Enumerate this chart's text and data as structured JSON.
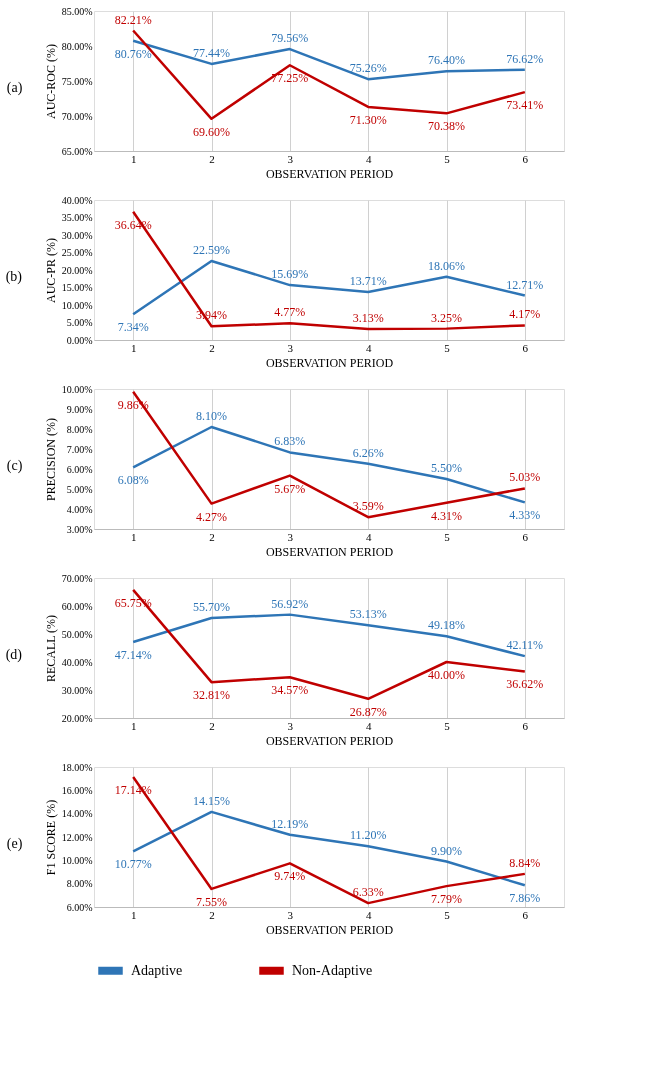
{
  "chart_data": [
    {
      "type": "line",
      "title": "(a)",
      "xlabel": "OBSERVATION PERIOD",
      "ylabel": "AUC-ROC (%)",
      "categories": [
        "1",
        "2",
        "3",
        "4",
        "5",
        "6"
      ],
      "ylim": [
        65,
        85
      ],
      "yticks": [
        {
          "value": 65,
          "label": "65.00%"
        },
        {
          "value": 70,
          "label": "70.00%"
        },
        {
          "value": 75,
          "label": "75.00%"
        },
        {
          "value": 80,
          "label": "80.00%"
        },
        {
          "value": 85,
          "label": "85.00%"
        }
      ],
      "grid": "x",
      "legend": "bottom",
      "series": [
        {
          "name": "Adaptive",
          "color": "#2e75b6",
          "values": [
            80.76,
            77.44,
            79.56,
            75.26,
            76.4,
            76.62
          ],
          "value_labels": [
            "80.76%",
            "77.44%",
            "79.56%",
            "75.26%",
            "76.40%",
            "76.62%"
          ]
        },
        {
          "name": "Non-Adaptive",
          "color": "#c00000",
          "values": [
            82.21,
            69.6,
            77.25,
            71.3,
            70.38,
            73.41
          ],
          "value_labels": [
            "82.21%",
            "69.60%",
            "77.25%",
            "71.30%",
            "70.38%",
            "73.41%"
          ]
        }
      ]
    },
    {
      "type": "line",
      "title": "(b)",
      "xlabel": "OBSERVATION PERIOD",
      "ylabel": "AUC-PR (%)",
      "categories": [
        "1",
        "2",
        "3",
        "4",
        "5",
        "6"
      ],
      "ylim": [
        0,
        40
      ],
      "yticks": [
        {
          "value": 0,
          "label": "0.00%"
        },
        {
          "value": 5,
          "label": "5.00%"
        },
        {
          "value": 10,
          "label": "10.00%"
        },
        {
          "value": 15,
          "label": "15.00%"
        },
        {
          "value": 20,
          "label": "20.00%"
        },
        {
          "value": 25,
          "label": "25.00%"
        },
        {
          "value": 30,
          "label": "30.00%"
        },
        {
          "value": 35,
          "label": "35.00%"
        },
        {
          "value": 40,
          "label": "40.00%"
        }
      ],
      "grid": "x",
      "legend": "bottom",
      "series": [
        {
          "name": "Adaptive",
          "color": "#2e75b6",
          "values": [
            7.34,
            22.59,
            15.69,
            13.71,
            18.06,
            12.71
          ],
          "value_labels": [
            "7.34%",
            "22.59%",
            "15.69%",
            "13.71%",
            "18.06%",
            "12.71%"
          ]
        },
        {
          "name": "Non-Adaptive",
          "color": "#c00000",
          "values": [
            36.64,
            3.94,
            4.77,
            3.13,
            3.25,
            4.17
          ],
          "value_labels": [
            "36.64%",
            "3.94%",
            "4.77%",
            "3.13%",
            "3.25%",
            "4.17%"
          ]
        }
      ]
    },
    {
      "type": "line",
      "title": "(c)",
      "xlabel": "OBSERVATION PERIOD",
      "ylabel": "PRECISION (%)",
      "categories": [
        "1",
        "2",
        "3",
        "4",
        "5",
        "6"
      ],
      "ylim": [
        3,
        10
      ],
      "yticks": [
        {
          "value": 3,
          "label": "3.00%"
        },
        {
          "value": 4,
          "label": "4.00%"
        },
        {
          "value": 5,
          "label": "5.00%"
        },
        {
          "value": 6,
          "label": "6.00%"
        },
        {
          "value": 7,
          "label": "7.00%"
        },
        {
          "value": 8,
          "label": "8.00%"
        },
        {
          "value": 9,
          "label": "9.00%"
        },
        {
          "value": 10,
          "label": "10.00%"
        }
      ],
      "grid": "x",
      "legend": "bottom",
      "series": [
        {
          "name": "Adaptive",
          "color": "#2e75b6",
          "values": [
            6.08,
            8.1,
            6.83,
            6.26,
            5.5,
            4.33
          ],
          "value_labels": [
            "6.08%",
            "8.10%",
            "6.83%",
            "6.26%",
            "5.50%",
            "4.33%"
          ]
        },
        {
          "name": "Non-Adaptive",
          "color": "#c00000",
          "values": [
            9.86,
            4.27,
            5.67,
            3.59,
            4.31,
            5.03
          ],
          "value_labels": [
            "9.86%",
            "4.27%",
            "5.67%",
            "3.59%",
            "4.31%",
            "5.03%"
          ]
        }
      ]
    },
    {
      "type": "line",
      "title": "(d)",
      "xlabel": "OBSERVATION PERIOD",
      "ylabel": "RECALL (%)",
      "categories": [
        "1",
        "2",
        "3",
        "4",
        "5",
        "6"
      ],
      "ylim": [
        20,
        70
      ],
      "yticks": [
        {
          "value": 20,
          "label": "20.00%"
        },
        {
          "value": 30,
          "label": "30.00%"
        },
        {
          "value": 40,
          "label": "40.00%"
        },
        {
          "value": 50,
          "label": "50.00%"
        },
        {
          "value": 60,
          "label": "60.00%"
        },
        {
          "value": 70,
          "label": "70.00%"
        }
      ],
      "grid": "x",
      "legend": "bottom",
      "series": [
        {
          "name": "Adaptive",
          "color": "#2e75b6",
          "values": [
            47.14,
            55.7,
            56.92,
            53.13,
            49.18,
            42.11
          ],
          "value_labels": [
            "47.14%",
            "55.70%",
            "56.92%",
            "53.13%",
            "49.18%",
            "42.11%"
          ]
        },
        {
          "name": "Non-Adaptive",
          "color": "#c00000",
          "values": [
            65.75,
            32.81,
            34.57,
            26.87,
            40.0,
            36.62
          ],
          "value_labels": [
            "65.75%",
            "32.81%",
            "34.57%",
            "26.87%",
            "40.00%",
            "36.62%"
          ]
        }
      ]
    },
    {
      "type": "line",
      "title": "(e)",
      "xlabel": "OBSERVATION PERIOD",
      "ylabel": "F1 SCORE (%)",
      "categories": [
        "1",
        "2",
        "3",
        "4",
        "5",
        "6"
      ],
      "ylim": [
        6,
        18
      ],
      "yticks": [
        {
          "value": 6,
          "label": "6.00%"
        },
        {
          "value": 8,
          "label": "8.00%"
        },
        {
          "value": 10,
          "label": "10.00%"
        },
        {
          "value": 12,
          "label": "12.00%"
        },
        {
          "value": 14,
          "label": "14.00%"
        },
        {
          "value": 16,
          "label": "16.00%"
        },
        {
          "value": 18,
          "label": "18.00%"
        }
      ],
      "grid": "x",
      "legend": "bottom",
      "series": [
        {
          "name": "Adaptive",
          "color": "#2e75b6",
          "values": [
            10.77,
            14.15,
            12.19,
            11.2,
            9.9,
            7.86
          ],
          "value_labels": [
            "10.77%",
            "14.15%",
            "12.19%",
            "11.20%",
            "9.90%",
            "7.86%"
          ]
        },
        {
          "name": "Non-Adaptive",
          "color": "#c00000",
          "values": [
            17.14,
            7.55,
            9.74,
            6.33,
            7.79,
            8.84
          ],
          "value_labels": [
            "17.14%",
            "7.55%",
            "9.74%",
            "6.33%",
            "7.79%",
            "8.84%"
          ]
        }
      ]
    }
  ]
}
